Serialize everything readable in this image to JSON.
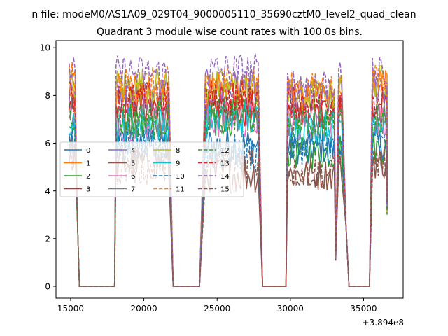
{
  "suptitle": "n file: modeM0/AS1A09_029T04_9000005110_35690cztM0_level2_quad_clean",
  "chart_data": {
    "type": "line",
    "title": "Quadrant 3 module wise count rates with 100.0s bins.",
    "xlabel": "",
    "ylabel": "",
    "x_offset_label": "+3.894e8",
    "xlim": [
      14000,
      37700
    ],
    "ylim": [
      -0.5,
      10.3
    ],
    "x_ticks": [
      15000,
      20000,
      25000,
      30000,
      35000
    ],
    "x_tick_labels": [
      "15000",
      "20000",
      "25000",
      "30000",
      "35000"
    ],
    "y_ticks": [
      0,
      2,
      4,
      6,
      8,
      10
    ],
    "y_tick_labels": [
      "0",
      "2",
      "4",
      "6",
      "8",
      "10"
    ],
    "legend_position": "center-left",
    "segments": [
      [
        14900,
        15300
      ],
      [
        18100,
        21700
      ],
      [
        24200,
        27800
      ],
      [
        29800,
        33000
      ],
      [
        33400,
        33400
      ],
      [
        35600,
        36600
      ]
    ],
    "gaps": [
      [
        15600,
        18000
      ],
      [
        22000,
        23900
      ],
      [
        28100,
        29700
      ],
      [
        34000,
        35400
      ]
    ],
    "series": [
      {
        "name": "0",
        "color": "#1f77b4",
        "dash": false,
        "levels": [
          6.2,
          6.0,
          5.9,
          5.8,
          5.8,
          6.0
        ]
      },
      {
        "name": "1",
        "color": "#ff7f0e",
        "dash": false,
        "levels": [
          8.0,
          8.1,
          8.2,
          8.0,
          8.0,
          8.5
        ]
      },
      {
        "name": "2",
        "color": "#2ca02c",
        "dash": false,
        "levels": [
          7.5,
          7.0,
          7.1,
          5.6,
          5.6,
          5.8
        ]
      },
      {
        "name": "3",
        "color": "#d62728",
        "dash": false,
        "levels": [
          7.8,
          7.6,
          7.5,
          7.3,
          7.3,
          7.5
        ]
      },
      {
        "name": "4",
        "color": "#9467bd",
        "dash": false,
        "levels": [
          8.3,
          8.0,
          8.3,
          7.8,
          7.8,
          8.3
        ]
      },
      {
        "name": "5",
        "color": "#8c564b",
        "dash": false,
        "levels": [
          5.6,
          5.2,
          4.7,
          4.7,
          4.7,
          5.2
        ]
      },
      {
        "name": "6",
        "color": "#e377c2",
        "dash": false,
        "levels": [
          7.2,
          6.9,
          7.0,
          6.8,
          6.8,
          7.0
        ]
      },
      {
        "name": "7",
        "color": "#7f7f7f",
        "dash": false,
        "levels": [
          7.3,
          6.9,
          7.2,
          7.0,
          7.0,
          7.1
        ]
      },
      {
        "name": "8",
        "color": "#bcbd22",
        "dash": false,
        "levels": [
          8.3,
          8.4,
          8.3,
          8.0,
          8.0,
          8.6
        ]
      },
      {
        "name": "9",
        "color": "#17becf",
        "dash": false,
        "levels": [
          6.9,
          6.8,
          7.0,
          6.7,
          6.7,
          7.0
        ]
      },
      {
        "name": "10",
        "color": "#1f77b4",
        "dash": true,
        "levels": [
          6.0,
          5.8,
          5.6,
          5.8,
          5.8,
          5.9
        ]
      },
      {
        "name": "11",
        "color": "#ff7f0e",
        "dash": true,
        "levels": [
          8.7,
          8.4,
          8.5,
          8.3,
          8.3,
          8.6
        ]
      },
      {
        "name": "12",
        "color": "#2ca02c",
        "dash": true,
        "levels": [
          7.2,
          7.0,
          7.1,
          6.9,
          6.9,
          7.1
        ]
      },
      {
        "name": "13",
        "color": "#d62728",
        "dash": true,
        "levels": [
          8.0,
          7.8,
          7.9,
          7.7,
          7.7,
          7.9
        ]
      },
      {
        "name": "14",
        "color": "#9467bd",
        "dash": true,
        "levels": [
          9.0,
          8.9,
          9.0,
          8.5,
          8.5,
          8.9
        ]
      },
      {
        "name": "15",
        "color": "#8c564b",
        "dash": true,
        "levels": [
          5.5,
          5.0,
          5.3,
          4.8,
          4.8,
          5.2
        ]
      }
    ]
  }
}
